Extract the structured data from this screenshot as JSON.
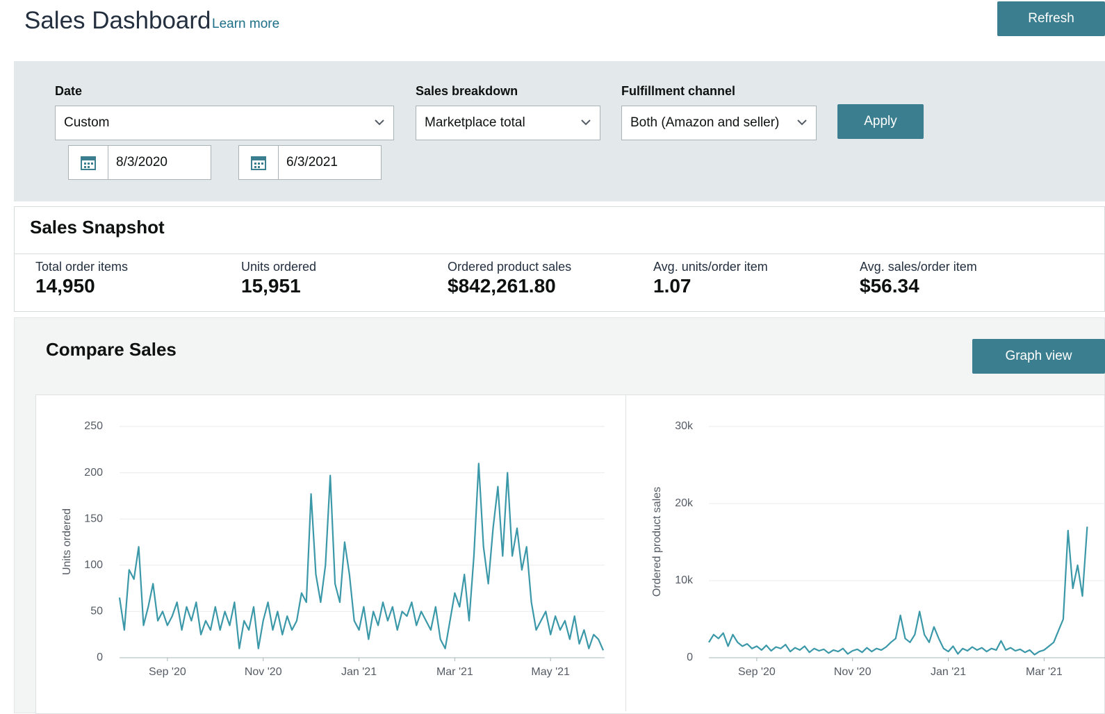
{
  "header": {
    "title": "Sales Dashboard",
    "learn_more": "Learn more",
    "refresh": "Refresh"
  },
  "filters": {
    "date": {
      "label": "Date",
      "value": "Custom",
      "start": "8/3/2020",
      "end": "6/3/2021"
    },
    "sales_breakdown": {
      "label": "Sales breakdown",
      "value": "Marketplace total"
    },
    "fulfillment_channel": {
      "label": "Fulfillment channel",
      "value": "Both (Amazon and seller)"
    },
    "apply": "Apply"
  },
  "snapshot": {
    "title": "Sales Snapshot",
    "metrics": [
      {
        "label": "Total order items",
        "value": "14,950"
      },
      {
        "label": "Units ordered",
        "value": "15,951"
      },
      {
        "label": "Ordered product sales",
        "value": "$842,261.80"
      },
      {
        "label": "Avg. units/order item",
        "value": "1.07"
      },
      {
        "label": "Avg. sales/order item",
        "value": "$56.34"
      }
    ]
  },
  "compare": {
    "title": "Compare Sales",
    "graph_view": "Graph view"
  },
  "chart_data": [
    {
      "type": "line",
      "y_label": "Units ordered",
      "color": "#3a98a8",
      "grid": true,
      "ylim": [
        0,
        250
      ],
      "yticks": [
        0,
        50,
        100,
        150,
        200,
        250
      ],
      "categories": [
        null,
        null,
        null,
        null,
        null,
        null,
        null,
        null,
        null,
        null,
        "Sep '20",
        null,
        null,
        null,
        null,
        null,
        null,
        null,
        null,
        null,
        null,
        null,
        null,
        null,
        null,
        null,
        null,
        null,
        null,
        null,
        "Nov '20",
        null,
        null,
        null,
        null,
        null,
        null,
        null,
        null,
        null,
        null,
        null,
        null,
        null,
        null,
        null,
        null,
        null,
        null,
        null,
        "Jan '21",
        null,
        null,
        null,
        null,
        null,
        null,
        null,
        null,
        null,
        null,
        null,
        null,
        null,
        null,
        null,
        null,
        null,
        null,
        null,
        "Mar '21",
        null,
        null,
        null,
        null,
        null,
        null,
        null,
        null,
        null,
        null,
        null,
        null,
        null,
        null,
        null,
        null,
        null,
        null,
        null,
        "May '21",
        null,
        null,
        null,
        null,
        null,
        null,
        null,
        null,
        null,
        null,
        null
      ],
      "values": [
        65,
        30,
        95,
        85,
        120,
        35,
        55,
        80,
        40,
        50,
        35,
        45,
        60,
        30,
        55,
        40,
        60,
        25,
        40,
        30,
        55,
        30,
        50,
        35,
        60,
        10,
        40,
        30,
        55,
        10,
        40,
        60,
        30,
        50,
        25,
        45,
        30,
        40,
        70,
        60,
        177,
        90,
        60,
        100,
        197,
        80,
        60,
        125,
        90,
        40,
        30,
        55,
        20,
        50,
        35,
        60,
        40,
        55,
        30,
        50,
        45,
        60,
        35,
        50,
        40,
        30,
        55,
        20,
        10,
        40,
        70,
        55,
        90,
        40,
        110,
        210,
        120,
        80,
        140,
        185,
        110,
        200,
        110,
        140,
        95,
        120,
        60,
        30,
        40,
        50,
        25,
        45,
        30,
        40,
        20,
        45,
        15,
        30,
        10,
        25,
        20,
        8
      ]
    },
    {
      "type": "line",
      "y_label": "Ordered product sales",
      "color": "#3a98a8",
      "grid": true,
      "ylim": [
        0,
        30000
      ],
      "yticks": [
        0,
        {
          "value": 10000,
          "label": "10k"
        },
        {
          "value": 20000,
          "label": "20k"
        },
        {
          "value": 30000,
          "label": "30k"
        }
      ],
      "categories": [
        null,
        null,
        null,
        null,
        null,
        null,
        null,
        null,
        null,
        null,
        "Sep '20",
        null,
        null,
        null,
        null,
        null,
        null,
        null,
        null,
        null,
        null,
        null,
        null,
        null,
        null,
        null,
        null,
        null,
        null,
        null,
        "Nov '20",
        null,
        null,
        null,
        null,
        null,
        null,
        null,
        null,
        null,
        null,
        null,
        null,
        null,
        null,
        null,
        null,
        null,
        null,
        null,
        "Jan '21",
        null,
        null,
        null,
        null,
        null,
        null,
        null,
        null,
        null,
        null,
        null,
        null,
        null,
        null,
        null,
        null,
        null,
        null,
        null,
        "Mar '21",
        null,
        null,
        null,
        null,
        null,
        null,
        null,
        null,
        null
      ],
      "values": [
        2000,
        3000,
        2500,
        3200,
        1500,
        3000,
        2000,
        1500,
        1800,
        1200,
        1500,
        1000,
        1600,
        900,
        1400,
        1200,
        1700,
        800,
        1300,
        1000,
        1500,
        700,
        1200,
        900,
        1100,
        600,
        1000,
        800,
        1200,
        500,
        900,
        1100,
        700,
        1300,
        800,
        1200,
        1000,
        1400,
        2000,
        2500,
        5500,
        2500,
        2000,
        3000,
        6000,
        3000,
        2000,
        4000,
        2500,
        1200,
        800,
        1500,
        500,
        1200,
        900,
        1400,
        1000,
        1300,
        800,
        1200,
        1000,
        2200,
        1000,
        1300,
        900,
        1100,
        700,
        1000,
        400,
        800,
        1000,
        1500,
        2000,
        3500,
        5000,
        16500,
        9000,
        12000,
        8000,
        17000
      ]
    }
  ]
}
